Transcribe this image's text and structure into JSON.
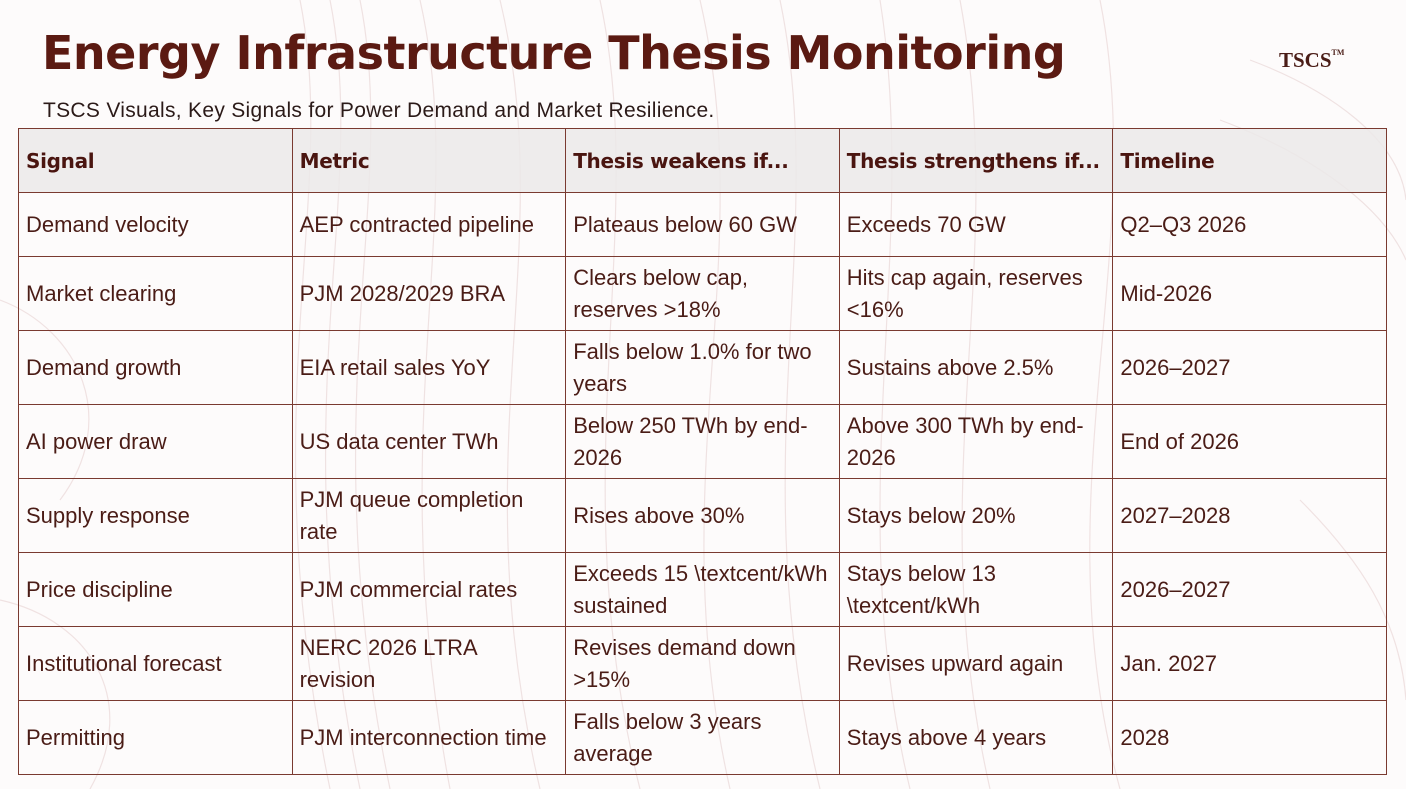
{
  "header": {
    "title": "Energy Infrastructure Thesis Monitoring",
    "subtitle": "TSCS Visuals, Key Signals for Power Demand and Market Resilience.",
    "logo": "TSCS",
    "logo_mark": "TM"
  },
  "colors": {
    "title": "#5b1a12",
    "text": "#4a1c16",
    "border": "#7a3a30",
    "header_bg": "#ebe9e9"
  },
  "table": {
    "columns": [
      "Signal",
      "Metric",
      "Thesis weakens if...",
      "Thesis strengthens if...",
      "Timeline"
    ],
    "rows": [
      [
        "Demand velocity",
        "AEP contracted pipeline",
        "Plateaus below 60 GW",
        "Exceeds 70 GW",
        "Q2–Q3 2026"
      ],
      [
        "Market clearing",
        "PJM 2028/2029 BRA",
        "Clears below cap, reserves >18%",
        "Hits cap again, reserves <16%",
        "Mid-2026"
      ],
      [
        "Demand growth",
        "EIA retail sales YoY",
        "Falls below 1.0% for two years",
        "Sustains above 2.5%",
        "2026–2027"
      ],
      [
        "AI power draw",
        "US data center TWh",
        "Below 250 TWh by end-2026",
        "Above 300 TWh by end-2026",
        "End of 2026"
      ],
      [
        "Supply response",
        "PJM queue completion rate",
        "Rises above 30%",
        "Stays below 20%",
        "2027–2028"
      ],
      [
        "Price discipline",
        "PJM commercial rates",
        "Exceeds 15 \\textcent/kWh sustained",
        "Stays below 13 \\textcent/kWh",
        "2026–2027"
      ],
      [
        "Institutional forecast",
        "NERC 2026 LTRA revision",
        "Revises demand down >15%",
        "Revises upward again",
        "Jan. 2027"
      ],
      [
        "Permitting",
        "PJM interconnection time",
        "Falls below 3 years average",
        "Stays above 4 years",
        "2028"
      ]
    ]
  }
}
